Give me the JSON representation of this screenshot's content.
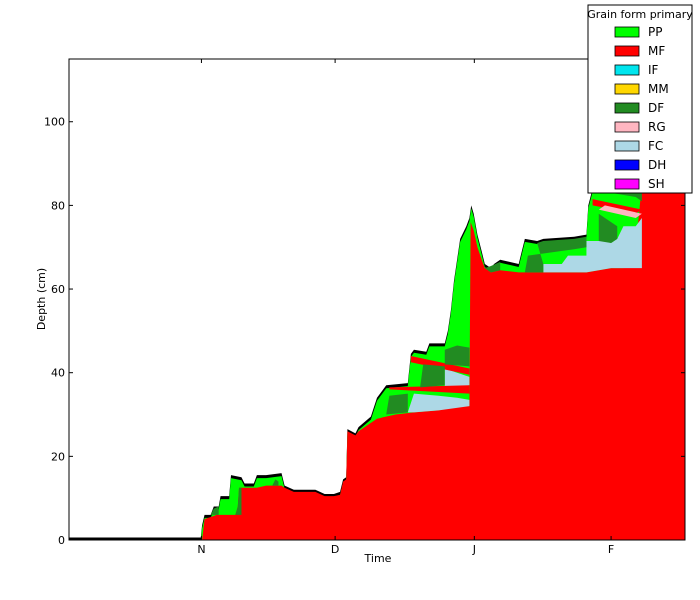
{
  "chart_data": {
    "type": "area",
    "title": "",
    "xlabel": "Time",
    "ylabel": "Depth (cm)",
    "xlim": [
      0,
      100
    ],
    "ylim": [
      0,
      115
    ],
    "x_ticks": [
      {
        "label": "N",
        "x": 21.5
      },
      {
        "label": "D",
        "x": 43.2
      },
      {
        "label": "J",
        "x": 65.8
      },
      {
        "label": "F",
        "x": 88.0
      }
    ],
    "y_ticks": [
      0,
      20,
      40,
      60,
      80,
      100
    ],
    "grid": false,
    "legend": {
      "title": "Grain form primary",
      "position": "top-right",
      "entries": [
        {
          "code": "PP",
          "color": "#00ff00"
        },
        {
          "code": "MF",
          "color": "#ff0000"
        },
        {
          "code": "IF",
          "color": "#00e5ee"
        },
        {
          "code": "MM",
          "color": "#ffd700"
        },
        {
          "code": "DF",
          "color": "#228b22"
        },
        {
          "code": "RG",
          "color": "#ffb6c1"
        },
        {
          "code": "FC",
          "color": "#add8e6"
        },
        {
          "code": "DH",
          "color": "#0000ff"
        },
        {
          "code": "SH",
          "color": "#ff00ff"
        }
      ]
    },
    "surface_color": "#000000",
    "snow_height": [
      [
        0,
        0.6
      ],
      [
        21.4,
        0.6
      ],
      [
        21.6,
        3.5
      ],
      [
        22.0,
        6.0
      ],
      [
        23.0,
        6.0
      ],
      [
        23.5,
        8.0
      ],
      [
        24.3,
        8.0
      ],
      [
        24.6,
        10.5
      ],
      [
        26.0,
        10.5
      ],
      [
        26.3,
        15.5
      ],
      [
        28.0,
        15.0
      ],
      [
        28.5,
        13.5
      ],
      [
        30.0,
        13.5
      ],
      [
        30.5,
        15.5
      ],
      [
        32.0,
        15.5
      ],
      [
        34.5,
        16.0
      ],
      [
        35.0,
        13.0
      ],
      [
        36.5,
        12.0
      ],
      [
        40.0,
        12.0
      ],
      [
        41.5,
        11.0
      ],
      [
        43.0,
        11.0
      ],
      [
        44.0,
        11.5
      ],
      [
        44.5,
        14.5
      ],
      [
        45.0,
        15.0
      ],
      [
        45.2,
        26.5
      ],
      [
        46.5,
        25.5
      ],
      [
        47.0,
        27.0
      ],
      [
        49.0,
        29.5
      ],
      [
        50.0,
        34.0
      ],
      [
        51.5,
        37.0
      ],
      [
        55.0,
        37.5
      ],
      [
        55.5,
        44.5
      ],
      [
        56.0,
        45.5
      ],
      [
        58.0,
        45.0
      ],
      [
        58.5,
        47.0
      ],
      [
        61.0,
        47.0
      ],
      [
        61.5,
        50.0
      ],
      [
        62.0,
        55.0
      ],
      [
        62.5,
        62.0
      ],
      [
        63.5,
        72.0
      ],
      [
        64.5,
        75.0
      ],
      [
        65.0,
        77.0
      ],
      [
        65.3,
        80.0
      ],
      [
        65.7,
        78.0
      ],
      [
        66.3,
        73.0
      ],
      [
        67.0,
        69.0
      ],
      [
        67.5,
        66.0
      ],
      [
        68.5,
        65.0
      ],
      [
        69.0,
        66.0
      ],
      [
        70.0,
        67.0
      ],
      [
        73.0,
        66.0
      ],
      [
        73.5,
        69.0
      ],
      [
        74.0,
        72.0
      ],
      [
        76.0,
        71.5
      ],
      [
        77.0,
        72.0
      ],
      [
        82.0,
        72.5
      ],
      [
        84.0,
        73.0
      ],
      [
        84.3,
        80.0
      ],
      [
        85.0,
        84.0
      ],
      [
        86.0,
        88.0
      ],
      [
        88.0,
        90.0
      ],
      [
        100,
        90.0
      ]
    ],
    "layers": [
      {
        "grain": "MF",
        "points": [
          [
            0,
            0
          ],
          [
            21.4,
            0
          ],
          [
            21.6,
            0
          ],
          [
            22.0,
            5.0
          ],
          [
            23.0,
            5.5
          ],
          [
            24.0,
            6.0
          ],
          [
            27.0,
            6.0
          ],
          [
            27.4,
            8.0
          ],
          [
            27.6,
            12.5
          ],
          [
            30.0,
            12.5
          ],
          [
            30.5,
            12.5
          ],
          [
            32.0,
            13.0
          ],
          [
            34.5,
            13.0
          ],
          [
            35.0,
            12.5
          ],
          [
            36.5,
            11.5
          ],
          [
            40.0,
            11.5
          ],
          [
            41.5,
            10.5
          ],
          [
            43.0,
            10.5
          ],
          [
            44.0,
            10.8
          ],
          [
            44.5,
            14.0
          ],
          [
            45.0,
            14.5
          ],
          [
            45.2,
            26.0
          ],
          [
            46.5,
            25.0
          ],
          [
            47.0,
            26.0
          ],
          [
            49.0,
            28.0
          ],
          [
            50.0,
            29.0
          ],
          [
            53.0,
            30.0
          ],
          [
            56.0,
            30.5
          ],
          [
            60.0,
            31.0
          ],
          [
            63.0,
            32.0
          ],
          [
            65.0,
            32.0
          ],
          [
            65.2,
            76.0
          ],
          [
            65.7,
            74.0
          ],
          [
            66.3,
            70.0
          ],
          [
            67.0,
            67.0
          ],
          [
            67.5,
            65.0
          ],
          [
            68.5,
            64.0
          ],
          [
            70.0,
            64.5
          ],
          [
            73.0,
            64.0
          ],
          [
            80.0,
            64.0
          ],
          [
            84.0,
            64.0
          ],
          [
            86.0,
            64.5
          ],
          [
            88.0,
            65.0
          ],
          [
            90.0,
            65.0
          ],
          [
            92.0,
            70.0
          ],
          [
            93.0,
            85.0
          ],
          [
            94.0,
            88.0
          ],
          [
            100,
            90.0
          ],
          [
            100,
            0
          ]
        ]
      },
      {
        "grain": "FC",
        "points": [
          [
            55.0,
            30.5
          ],
          [
            56.0,
            35.0
          ],
          [
            60.0,
            34.5
          ],
          [
            63.0,
            34.0
          ],
          [
            65.0,
            33.5
          ],
          [
            65.0,
            32.0
          ],
          [
            60.0,
            31.0
          ],
          [
            56.0,
            30.5
          ]
        ]
      },
      {
        "grain": "FC",
        "points": [
          [
            61.0,
            36.0
          ],
          [
            61.0,
            41.0
          ],
          [
            63.0,
            40.0
          ],
          [
            65.0,
            39.0
          ],
          [
            65.0,
            37.0
          ],
          [
            63.0,
            36.5
          ]
        ]
      },
      {
        "grain": "FC",
        "points": [
          [
            77.0,
            64.0
          ],
          [
            77.0,
            66.0
          ],
          [
            80.0,
            66.0
          ],
          [
            81.0,
            68.0
          ],
          [
            84.0,
            68.0
          ],
          [
            84.0,
            71.5
          ],
          [
            87.0,
            71.5
          ],
          [
            88.0,
            71.0
          ],
          [
            89.0,
            72.0
          ],
          [
            90.0,
            75.0
          ],
          [
            92.0,
            75.0
          ],
          [
            93.0,
            77.0
          ],
          [
            93.0,
            65.0
          ],
          [
            90.0,
            65.0
          ],
          [
            88.0,
            65.0
          ],
          [
            86.0,
            64.5
          ],
          [
            84.0,
            64.0
          ],
          [
            80.0,
            64.0
          ]
        ]
      },
      {
        "grain": "MF",
        "points": [
          [
            55.5,
            44.0
          ],
          [
            65.0,
            41.0
          ],
          [
            65.0,
            39.5
          ],
          [
            55.5,
            42.5
          ]
        ]
      },
      {
        "grain": "MF",
        "points": [
          [
            52.0,
            36.0
          ],
          [
            65.0,
            35.0
          ],
          [
            65.0,
            37.0
          ],
          [
            52.0,
            36.5
          ]
        ]
      },
      {
        "grain": "MF",
        "points": [
          [
            85.0,
            80.0
          ],
          [
            92.0,
            78.0
          ],
          [
            93.0,
            79.0
          ],
          [
            85.0,
            81.5
          ]
        ]
      },
      {
        "grain": "RG",
        "points": [
          [
            86.0,
            79.0
          ],
          [
            92.0,
            77.0
          ],
          [
            93.0,
            78.0
          ],
          [
            87.0,
            80.0
          ]
        ]
      },
      {
        "grain": "DF",
        "points": [
          [
            28.0,
            6.0
          ],
          [
            28.0,
            12.5
          ],
          [
            27.6,
            12.5
          ],
          [
            27.4,
            8.0
          ],
          [
            27.0,
            6.0
          ]
        ]
      },
      {
        "grain": "DF",
        "points": [
          [
            24.3,
            6.0
          ],
          [
            24.3,
            8.0
          ],
          [
            23.5,
            7.5
          ],
          [
            23.0,
            6.0
          ]
        ]
      },
      {
        "grain": "DF",
        "points": [
          [
            33.0,
            13.0
          ],
          [
            33.5,
            14.5
          ],
          [
            34.0,
            14.0
          ],
          [
            34.0,
            13.0
          ]
        ]
      },
      {
        "grain": "DF",
        "points": [
          [
            51.5,
            30.0
          ],
          [
            52.0,
            34.5
          ],
          [
            55.0,
            35.0
          ],
          [
            55.0,
            30.5
          ]
        ]
      },
      {
        "grain": "DF",
        "points": [
          [
            57.0,
            36.5
          ],
          [
            57.5,
            42.0
          ],
          [
            61.0,
            41.5
          ],
          [
            61.0,
            37.0
          ]
        ]
      },
      {
        "grain": "DF",
        "points": [
          [
            61.0,
            42.0
          ],
          [
            61.0,
            45.5
          ],
          [
            63.0,
            46.5
          ],
          [
            65.0,
            46.0
          ],
          [
            65.0,
            41.5
          ]
        ]
      },
      {
        "grain": "DF",
        "points": [
          [
            67.5,
            65.0
          ],
          [
            68.5,
            64.0
          ],
          [
            70.0,
            64.5
          ],
          [
            70.0,
            66.5
          ],
          [
            68.5,
            65.5
          ]
        ]
      },
      {
        "grain": "DF",
        "points": [
          [
            74.0,
            64.0
          ],
          [
            74.5,
            68.0
          ],
          [
            77.0,
            68.5
          ],
          [
            82.0,
            69.5
          ],
          [
            84.0,
            70.0
          ],
          [
            84.0,
            72.5
          ],
          [
            82.0,
            72.0
          ],
          [
            77.0,
            71.5
          ],
          [
            76.0,
            71.0
          ],
          [
            77.0,
            66.0
          ],
          [
            77.0,
            64.0
          ]
        ]
      },
      {
        "grain": "DF",
        "points": [
          [
            86.0,
            71.5
          ],
          [
            86.0,
            78.0
          ],
          [
            87.0,
            77.0
          ],
          [
            89.0,
            75.0
          ],
          [
            89.0,
            72.0
          ],
          [
            88.0,
            71.0
          ]
        ]
      },
      {
        "grain": "DF",
        "points": [
          [
            87.0,
            84.0
          ],
          [
            88.0,
            83.0
          ],
          [
            92.0,
            82.0
          ],
          [
            93.0,
            81.0
          ],
          [
            93.0,
            85.0
          ],
          [
            90.0,
            86.0
          ],
          [
            88.0,
            87.0
          ]
        ]
      }
    ]
  }
}
